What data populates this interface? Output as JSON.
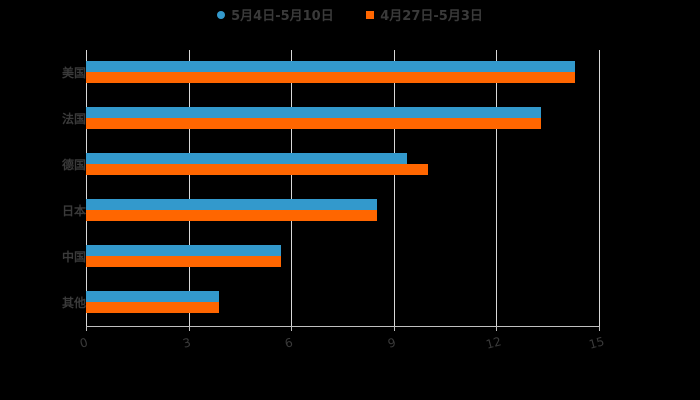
{
  "chart_data": {
    "type": "bar",
    "orientation": "horizontal",
    "title": "",
    "xlabel": "",
    "ylabel": "",
    "categories": [
      "美国",
      "法国",
      "德国",
      "日本",
      "中国",
      "其他"
    ],
    "series": [
      {
        "name": "5月4日-5月10日",
        "color": "#3399cc",
        "values": [
          14.3,
          13.3,
          9.4,
          8.5,
          5.7,
          3.9
        ]
      },
      {
        "name": "4月27日-5月3日",
        "color": "#ff6600",
        "values": [
          14.3,
          13.3,
          10.0,
          8.5,
          5.7,
          3.9
        ]
      }
    ],
    "xlim": [
      0,
      15
    ],
    "xticks": [
      "0",
      "3",
      "6",
      "9",
      "12",
      "15"
    ],
    "grid": true,
    "legend_position": "top"
  },
  "legend": {
    "series1": "5月4日-5月10日",
    "series2": "4月27日-5月3日"
  },
  "colors": {
    "series1": "#3399cc",
    "series2": "#ff6600",
    "background": "#000000",
    "text": "#3a3a3a",
    "grid": "#d9d9d9"
  }
}
